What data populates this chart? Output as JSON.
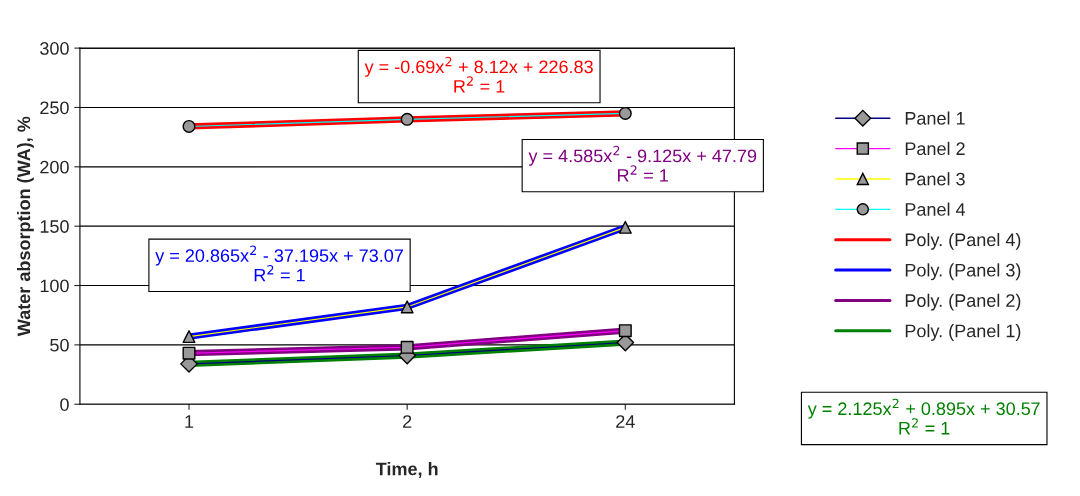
{
  "chart_data": {
    "type": "line",
    "xlabel": "Time, h",
    "ylabel": "Water absorption (WA), %",
    "categories": [
      "1",
      "2",
      "24"
    ],
    "ylim": [
      0,
      300
    ],
    "yticks": [
      0,
      50,
      100,
      150,
      200,
      250,
      300
    ],
    "grid": "y",
    "legend": "right",
    "series": [
      {
        "name": "Panel 1",
        "color": "#000080",
        "marker": "diamond",
        "values": [
          34,
          41,
          52
        ]
      },
      {
        "name": "Panel 2",
        "color": "#ff00ff",
        "marker": "square",
        "values": [
          43,
          48,
          62
        ]
      },
      {
        "name": "Panel 3",
        "color": "#ffff00",
        "marker": "triangle",
        "values": [
          57,
          82,
          149
        ]
      },
      {
        "name": "Panel 4",
        "color": "#00ffff",
        "marker": "circle",
        "values": [
          234,
          240,
          245
        ]
      },
      {
        "name": "Poly. (Panel 4)",
        "color": "#ff0000",
        "marker": "none",
        "values": [
          234,
          240,
          245
        ]
      },
      {
        "name": "Poly. (Panel 3)",
        "color": "#0000ff",
        "marker": "none",
        "values": [
          57,
          82,
          149
        ]
      },
      {
        "name": "Poly. (Panel 2)",
        "color": "#800080",
        "marker": "none",
        "values": [
          43,
          48,
          62
        ]
      },
      {
        "name": "Poly. (Panel 1)",
        "color": "#008000",
        "marker": "none",
        "values": [
          34,
          41,
          52
        ]
      }
    ],
    "annotations": [
      "y = -0.69x$^{2}$ + 8.12x + 226.83\nR$^{2}$ = 1",
      "y = 20.865x$^{2}$ - 37.195x + 73.07\nR$^{2}$ = 1",
      "y = 4.585x$^{2}$ - 9.125x + 47.79\nR$^{2}$ = 1",
      "y = 2.125x$^{2}$ + 0.895x + 30.57\nR$^{2}$ = 1"
    ]
  }
}
